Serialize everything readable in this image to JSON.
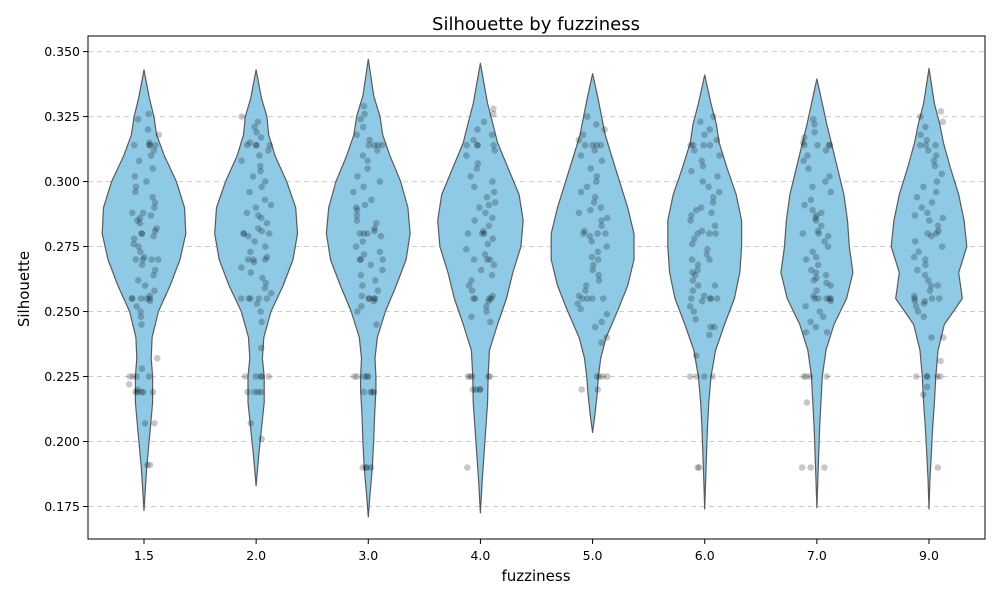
{
  "chart_data": {
    "type": "violin",
    "title": "Silhouette by fuzziness",
    "xlabel": "fuzziness",
    "ylabel": "Silhouette",
    "categories": [
      "1.5",
      "2.0",
      "3.0",
      "4.0",
      "5.0",
      "6.0",
      "7.0",
      "9.0"
    ],
    "ylim": [
      0.1625,
      0.356
    ],
    "yticks": [
      "0.175",
      "0.200",
      "0.225",
      "0.250",
      "0.275",
      "0.300",
      "0.325",
      "0.350"
    ],
    "grid": "y-dashed",
    "colors": {
      "violin_fill": "#8ecae6",
      "violin_edge": "#5a5a5a",
      "points": "#000000",
      "grid": "#cccccc"
    },
    "violins": [
      {
        "label": "1.5",
        "min": 0.1735,
        "max": 0.343,
        "shape": [
          [
            0.1735,
            0
          ],
          [
            0.19,
            0.06
          ],
          [
            0.205,
            0.14
          ],
          [
            0.215,
            0.19
          ],
          [
            0.225,
            0.19
          ],
          [
            0.232,
            0.16
          ],
          [
            0.24,
            0.18
          ],
          [
            0.25,
            0.32
          ],
          [
            0.26,
            0.58
          ],
          [
            0.27,
            0.8
          ],
          [
            0.28,
            0.93
          ],
          [
            0.29,
            0.9
          ],
          [
            0.3,
            0.72
          ],
          [
            0.31,
            0.45
          ],
          [
            0.318,
            0.28
          ],
          [
            0.325,
            0.22
          ],
          [
            0.332,
            0.12
          ],
          [
            0.343,
            0
          ]
        ],
        "points": [
          0.326,
          0.324,
          0.32,
          0.318,
          0.315,
          0.314,
          0.314,
          0.314,
          0.314,
          0.312,
          0.31,
          0.308,
          0.305,
          0.302,
          0.3,
          0.298,
          0.296,
          0.294,
          0.292,
          0.29,
          0.288,
          0.288,
          0.287,
          0.286,
          0.285,
          0.284,
          0.282,
          0.281,
          0.28,
          0.28,
          0.279,
          0.278,
          0.276,
          0.275,
          0.273,
          0.271,
          0.27,
          0.27,
          0.27,
          0.27,
          0.268,
          0.266,
          0.264,
          0.262,
          0.26,
          0.258,
          0.256,
          0.255,
          0.255,
          0.255,
          0.255,
          0.255,
          0.254,
          0.252,
          0.25,
          0.248,
          0.245,
          0.232,
          0.228,
          0.225,
          0.225,
          0.225,
          0.225,
          0.222,
          0.22,
          0.219,
          0.219,
          0.219,
          0.219,
          0.219,
          0.207,
          0.207,
          0.191,
          0.191
        ]
      },
      {
        "label": "2.0",
        "min": 0.183,
        "max": 0.343,
        "shape": [
          [
            0.183,
            0
          ],
          [
            0.195,
            0.06
          ],
          [
            0.205,
            0.12
          ],
          [
            0.215,
            0.18
          ],
          [
            0.225,
            0.18
          ],
          [
            0.232,
            0.14
          ],
          [
            0.24,
            0.17
          ],
          [
            0.25,
            0.33
          ],
          [
            0.26,
            0.6
          ],
          [
            0.27,
            0.82
          ],
          [
            0.28,
            0.92
          ],
          [
            0.29,
            0.88
          ],
          [
            0.3,
            0.68
          ],
          [
            0.31,
            0.42
          ],
          [
            0.318,
            0.28
          ],
          [
            0.325,
            0.24
          ],
          [
            0.332,
            0.12
          ],
          [
            0.343,
            0
          ]
        ],
        "points": [
          0.325,
          0.323,
          0.321,
          0.319,
          0.317,
          0.315,
          0.314,
          0.314,
          0.314,
          0.314,
          0.312,
          0.31,
          0.308,
          0.306,
          0.304,
          0.302,
          0.3,
          0.298,
          0.296,
          0.293,
          0.291,
          0.29,
          0.288,
          0.287,
          0.286,
          0.284,
          0.282,
          0.281,
          0.28,
          0.28,
          0.28,
          0.279,
          0.277,
          0.275,
          0.273,
          0.271,
          0.27,
          0.27,
          0.27,
          0.269,
          0.267,
          0.265,
          0.263,
          0.261,
          0.259,
          0.257,
          0.255,
          0.255,
          0.255,
          0.255,
          0.255,
          0.253,
          0.25,
          0.246,
          0.236,
          0.225,
          0.225,
          0.225,
          0.225,
          0.225,
          0.219,
          0.219,
          0.219,
          0.219,
          0.207,
          0.201
        ]
      },
      {
        "label": "3.0",
        "min": 0.171,
        "max": 0.347,
        "shape": [
          [
            0.171,
            0
          ],
          [
            0.18,
            0.04
          ],
          [
            0.19,
            0.09
          ],
          [
            0.2,
            0.12
          ],
          [
            0.21,
            0.14
          ],
          [
            0.22,
            0.17
          ],
          [
            0.225,
            0.17
          ],
          [
            0.232,
            0.15
          ],
          [
            0.24,
            0.2
          ],
          [
            0.25,
            0.38
          ],
          [
            0.26,
            0.62
          ],
          [
            0.27,
            0.84
          ],
          [
            0.28,
            0.93
          ],
          [
            0.29,
            0.88
          ],
          [
            0.3,
            0.72
          ],
          [
            0.31,
            0.48
          ],
          [
            0.318,
            0.32
          ],
          [
            0.325,
            0.26
          ],
          [
            0.333,
            0.12
          ],
          [
            0.347,
            0
          ]
        ],
        "points": [
          0.329,
          0.326,
          0.324,
          0.321,
          0.318,
          0.316,
          0.314,
          0.314,
          0.314,
          0.314,
          0.312,
          0.31,
          0.308,
          0.305,
          0.302,
          0.3,
          0.298,
          0.296,
          0.293,
          0.291,
          0.29,
          0.289,
          0.287,
          0.285,
          0.284,
          0.282,
          0.281,
          0.28,
          0.28,
          0.28,
          0.279,
          0.277,
          0.275,
          0.273,
          0.272,
          0.27,
          0.27,
          0.27,
          0.268,
          0.266,
          0.264,
          0.262,
          0.26,
          0.258,
          0.256,
          0.255,
          0.255,
          0.255,
          0.255,
          0.254,
          0.252,
          0.25,
          0.245,
          0.225,
          0.225,
          0.225,
          0.225,
          0.225,
          0.219,
          0.219,
          0.219,
          0.219,
          0.19,
          0.19,
          0.19,
          0.19
        ]
      },
      {
        "label": "4.0",
        "min": 0.1725,
        "max": 0.3455,
        "shape": [
          [
            0.1725,
            0
          ],
          [
            0.185,
            0.04
          ],
          [
            0.195,
            0.08
          ],
          [
            0.205,
            0.12
          ],
          [
            0.215,
            0.16
          ],
          [
            0.225,
            0.17
          ],
          [
            0.235,
            0.2
          ],
          [
            0.245,
            0.38
          ],
          [
            0.255,
            0.58
          ],
          [
            0.265,
            0.72
          ],
          [
            0.275,
            0.9
          ],
          [
            0.285,
            0.95
          ],
          [
            0.295,
            0.86
          ],
          [
            0.305,
            0.62
          ],
          [
            0.315,
            0.38
          ],
          [
            0.322,
            0.28
          ],
          [
            0.33,
            0.16
          ],
          [
            0.3455,
            0
          ]
        ],
        "points": [
          0.328,
          0.326,
          0.323,
          0.32,
          0.318,
          0.316,
          0.314,
          0.314,
          0.314,
          0.314,
          0.312,
          0.31,
          0.307,
          0.305,
          0.302,
          0.3,
          0.298,
          0.296,
          0.294,
          0.292,
          0.291,
          0.29,
          0.288,
          0.286,
          0.285,
          0.283,
          0.281,
          0.28,
          0.28,
          0.28,
          0.278,
          0.276,
          0.274,
          0.272,
          0.27,
          0.27,
          0.27,
          0.268,
          0.266,
          0.264,
          0.262,
          0.26,
          0.258,
          0.256,
          0.255,
          0.255,
          0.255,
          0.255,
          0.254,
          0.252,
          0.25,
          0.248,
          0.246,
          0.225,
          0.225,
          0.225,
          0.225,
          0.225,
          0.22,
          0.22,
          0.22,
          0.22,
          0.19
        ]
      },
      {
        "label": "5.0",
        "min": 0.2035,
        "max": 0.3415,
        "shape": [
          [
            0.2035,
            0
          ],
          [
            0.21,
            0.05
          ],
          [
            0.218,
            0.1
          ],
          [
            0.225,
            0.13
          ],
          [
            0.232,
            0.18
          ],
          [
            0.24,
            0.3
          ],
          [
            0.25,
            0.55
          ],
          [
            0.26,
            0.78
          ],
          [
            0.27,
            0.92
          ],
          [
            0.28,
            0.92
          ],
          [
            0.29,
            0.78
          ],
          [
            0.3,
            0.6
          ],
          [
            0.31,
            0.42
          ],
          [
            0.318,
            0.28
          ],
          [
            0.325,
            0.2
          ],
          [
            0.332,
            0.12
          ],
          [
            0.3415,
            0
          ]
        ],
        "points": [
          0.325,
          0.322,
          0.32,
          0.318,
          0.316,
          0.314,
          0.314,
          0.314,
          0.314,
          0.312,
          0.31,
          0.308,
          0.305,
          0.302,
          0.3,
          0.298,
          0.296,
          0.294,
          0.292,
          0.29,
          0.289,
          0.288,
          0.286,
          0.285,
          0.283,
          0.281,
          0.28,
          0.28,
          0.28,
          0.279,
          0.277,
          0.275,
          0.273,
          0.271,
          0.27,
          0.268,
          0.266,
          0.264,
          0.262,
          0.26,
          0.258,
          0.256,
          0.255,
          0.255,
          0.255,
          0.255,
          0.253,
          0.251,
          0.249,
          0.246,
          0.244,
          0.24,
          0.238,
          0.225,
          0.225,
          0.225,
          0.225,
          0.22,
          0.22
        ]
      },
      {
        "label": "6.0",
        "min": 0.174,
        "max": 0.341,
        "shape": [
          [
            0.174,
            0
          ],
          [
            0.185,
            0.02
          ],
          [
            0.195,
            0.04
          ],
          [
            0.205,
            0.06
          ],
          [
            0.215,
            0.09
          ],
          [
            0.225,
            0.14
          ],
          [
            0.235,
            0.24
          ],
          [
            0.245,
            0.44
          ],
          [
            0.255,
            0.66
          ],
          [
            0.265,
            0.78
          ],
          [
            0.275,
            0.82
          ],
          [
            0.285,
            0.82
          ],
          [
            0.295,
            0.7
          ],
          [
            0.305,
            0.5
          ],
          [
            0.315,
            0.32
          ],
          [
            0.322,
            0.26
          ],
          [
            0.33,
            0.14
          ],
          [
            0.341,
            0
          ]
        ],
        "points": [
          0.325,
          0.323,
          0.32,
          0.318,
          0.316,
          0.314,
          0.314,
          0.314,
          0.314,
          0.312,
          0.31,
          0.308,
          0.306,
          0.304,
          0.302,
          0.3,
          0.298,
          0.296,
          0.294,
          0.292,
          0.29,
          0.289,
          0.288,
          0.287,
          0.285,
          0.283,
          0.281,
          0.28,
          0.28,
          0.28,
          0.278,
          0.276,
          0.274,
          0.272,
          0.27,
          0.27,
          0.268,
          0.266,
          0.265,
          0.264,
          0.262,
          0.26,
          0.26,
          0.258,
          0.256,
          0.255,
          0.255,
          0.255,
          0.255,
          0.254,
          0.252,
          0.25,
          0.247,
          0.244,
          0.244,
          0.241,
          0.233,
          0.225,
          0.225,
          0.225,
          0.225,
          0.19,
          0.19
        ]
      },
      {
        "label": "7.0",
        "min": 0.1745,
        "max": 0.3395,
        "shape": [
          [
            0.1745,
            0
          ],
          [
            0.185,
            0.02
          ],
          [
            0.195,
            0.04
          ],
          [
            0.205,
            0.06
          ],
          [
            0.215,
            0.09
          ],
          [
            0.225,
            0.12
          ],
          [
            0.235,
            0.2
          ],
          [
            0.245,
            0.38
          ],
          [
            0.255,
            0.66
          ],
          [
            0.265,
            0.8
          ],
          [
            0.275,
            0.72
          ],
          [
            0.285,
            0.68
          ],
          [
            0.295,
            0.6
          ],
          [
            0.305,
            0.46
          ],
          [
            0.315,
            0.32
          ],
          [
            0.322,
            0.22
          ],
          [
            0.33,
            0.12
          ],
          [
            0.3395,
            0
          ]
        ],
        "points": [
          0.324,
          0.322,
          0.319,
          0.317,
          0.315,
          0.314,
          0.314,
          0.314,
          0.314,
          0.312,
          0.31,
          0.308,
          0.305,
          0.302,
          0.3,
          0.298,
          0.296,
          0.293,
          0.291,
          0.289,
          0.288,
          0.287,
          0.286,
          0.285,
          0.283,
          0.281,
          0.28,
          0.28,
          0.279,
          0.277,
          0.275,
          0.273,
          0.271,
          0.27,
          0.268,
          0.266,
          0.265,
          0.264,
          0.263,
          0.262,
          0.261,
          0.26,
          0.258,
          0.256,
          0.255,
          0.255,
          0.255,
          0.255,
          0.255,
          0.254,
          0.252,
          0.25,
          0.248,
          0.246,
          0.244,
          0.242,
          0.242,
          0.225,
          0.225,
          0.225,
          0.225,
          0.215,
          0.19,
          0.19,
          0.19
        ]
      },
      {
        "label": "9.0",
        "min": 0.174,
        "max": 0.3435,
        "shape": [
          [
            0.174,
            0
          ],
          [
            0.185,
            0.02
          ],
          [
            0.195,
            0.05
          ],
          [
            0.205,
            0.08
          ],
          [
            0.215,
            0.12
          ],
          [
            0.225,
            0.15
          ],
          [
            0.235,
            0.2
          ],
          [
            0.245,
            0.34
          ],
          [
            0.255,
            0.74
          ],
          [
            0.265,
            0.66
          ],
          [
            0.275,
            0.84
          ],
          [
            0.285,
            0.78
          ],
          [
            0.295,
            0.66
          ],
          [
            0.305,
            0.48
          ],
          [
            0.315,
            0.32
          ],
          [
            0.322,
            0.24
          ],
          [
            0.33,
            0.12
          ],
          [
            0.3435,
            0
          ]
        ],
        "points": [
          0.327,
          0.325,
          0.323,
          0.321,
          0.318,
          0.316,
          0.314,
          0.314,
          0.314,
          0.312,
          0.31,
          0.308,
          0.306,
          0.303,
          0.3,
          0.298,
          0.296,
          0.294,
          0.292,
          0.29,
          0.288,
          0.287,
          0.286,
          0.285,
          0.283,
          0.281,
          0.28,
          0.28,
          0.279,
          0.277,
          0.275,
          0.273,
          0.271,
          0.27,
          0.268,
          0.266,
          0.264,
          0.262,
          0.26,
          0.26,
          0.258,
          0.256,
          0.255,
          0.255,
          0.255,
          0.254,
          0.254,
          0.253,
          0.252,
          0.25,
          0.248,
          0.24,
          0.24,
          0.231,
          0.225,
          0.225,
          0.225,
          0.225,
          0.225,
          0.221,
          0.218,
          0.19
        ]
      }
    ]
  }
}
